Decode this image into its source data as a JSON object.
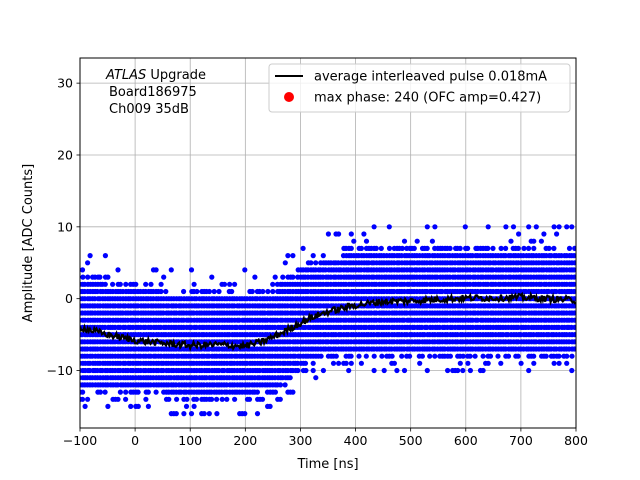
{
  "chart_data": {
    "type": "scatter",
    "title": "",
    "xlabel": "Time [ns]",
    "ylabel": "Amplitude [ADC Counts]",
    "xlim": [
      -100,
      800
    ],
    "ylim": [
      -18,
      33.5
    ],
    "xticks": [
      -100,
      0,
      100,
      200,
      300,
      400,
      500,
      600,
      700,
      800
    ],
    "yticks": [
      -10,
      0,
      10,
      20,
      30
    ],
    "grid": true,
    "annotation": {
      "experiment": "ATLAS",
      "suffix": " Upgrade",
      "board": "Board186975",
      "channel": "Ch009 35dB"
    },
    "legend": {
      "position": "top-right",
      "entries": [
        {
          "label": "average interleaved pulse 0.018mA",
          "marker": "line",
          "color": "#000000"
        },
        {
          "label": "max phase: 240 (OFC amp=0.427)",
          "marker": "dot",
          "color": "#ff0000"
        }
      ]
    },
    "series": [
      {
        "name": "samples",
        "color": "#0000ff",
        "description": "interleaved ADC samples, integer amplitudes",
        "band": {
          "x": [
            -100,
            0,
            100,
            200,
            250,
            300,
            350,
            400,
            500,
            600,
            700,
            800
          ],
          "min": [
            -13,
            -13,
            -14,
            -14,
            -13,
            -10,
            -8,
            -8,
            -8,
            -8,
            -8,
            -8
          ],
          "max": [
            3,
            2,
            1,
            1,
            1,
            4,
            6,
            7,
            7,
            7,
            7,
            7
          ]
        }
      },
      {
        "name": "average interleaved pulse 0.018mA",
        "color": "#000000",
        "x": [
          -100,
          -50,
          0,
          50,
          100,
          150,
          200,
          230,
          260,
          290,
          320,
          350,
          400,
          450,
          500,
          550,
          600,
          650,
          700,
          750,
          800
        ],
        "y": [
          -4,
          -5,
          -5.8,
          -6.2,
          -6.5,
          -6.4,
          -6.6,
          -6,
          -5,
          -3.8,
          -2.6,
          -1.8,
          -0.9,
          -0.4,
          -0.3,
          -0.1,
          0.1,
          0.1,
          0.2,
          0,
          -0.2
        ]
      }
    ]
  }
}
